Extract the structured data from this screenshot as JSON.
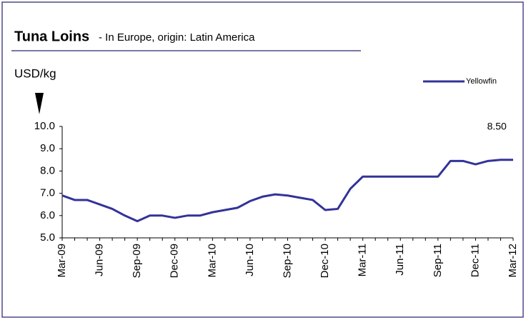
{
  "chart_data": {
    "type": "line",
    "title": "Tuna Loins",
    "subtitle": "- In Europe, origin: Latin America",
    "y_label": "USD/kg",
    "annotation": "8.50",
    "categories": [
      "Mar-09",
      null,
      null,
      "Jun-09",
      null,
      null,
      "Sep-09",
      null,
      null,
      "Dec-09",
      null,
      null,
      "Mar-10",
      null,
      null,
      "Jun-10",
      null,
      null,
      "Sep-10",
      null,
      null,
      "Dec-10",
      null,
      null,
      "Mar-11",
      null,
      null,
      "Jun-11",
      null,
      null,
      "Sep-11",
      null,
      null,
      "Dec-11",
      null,
      null,
      "Mar-12"
    ],
    "series": [
      {
        "name": "Yellowfin",
        "color": "#333399",
        "values": [
          6.9,
          6.7,
          6.7,
          6.5,
          6.3,
          6.0,
          5.75,
          6.0,
          6.0,
          5.9,
          6.0,
          6.0,
          6.15,
          6.25,
          6.35,
          6.65,
          6.85,
          6.95,
          6.9,
          6.8,
          6.7,
          6.25,
          6.3,
          7.2,
          7.75,
          7.75,
          7.75,
          7.75,
          7.75,
          7.75,
          7.75,
          8.45,
          8.45,
          8.3,
          8.45,
          8.5,
          8.5
        ]
      }
    ],
    "ylim": [
      5,
      10
    ],
    "yticks": [
      {
        "value": 5,
        "label": "5.0"
      },
      {
        "value": 6,
        "label": "6.0"
      },
      {
        "value": 7,
        "label": "7.0"
      },
      {
        "value": 8,
        "label": "8.0"
      },
      {
        "value": 9,
        "label": "9.0"
      },
      {
        "value": 10,
        "label": "10.0"
      }
    ],
    "legend": "top-right"
  }
}
